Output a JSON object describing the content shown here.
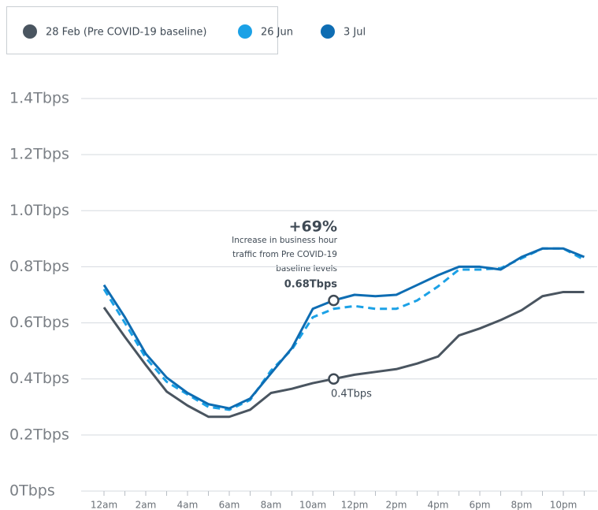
{
  "chart_data": {
    "type": "line",
    "categories": [
      "12am",
      null,
      "2am",
      null,
      "4am",
      null,
      "6am",
      null,
      "8am",
      null,
      "10am",
      null,
      "12pm",
      null,
      "2pm",
      null,
      "4pm",
      null,
      "6pm",
      null,
      "8pm",
      null,
      "10pm",
      null
    ],
    "series": [
      {
        "name": "28 Feb (Pre COVID-19 baseline)",
        "color": "#4a5560",
        "style": "solid",
        "values": [
          0.655,
          0.55,
          0.45,
          0.355,
          0.305,
          0.265,
          0.265,
          0.29,
          0.35,
          0.365,
          0.385,
          0.4,
          0.415,
          0.425,
          0.435,
          0.455,
          0.48,
          0.555,
          0.58,
          0.61,
          0.645,
          0.695,
          0.71,
          0.71
        ]
      },
      {
        "name": "26 Jun",
        "color": "#1ba1e6",
        "style": "dashed",
        "values": [
          0.72,
          0.6,
          0.475,
          0.39,
          0.345,
          0.3,
          0.29,
          0.325,
          0.43,
          0.505,
          0.62,
          0.65,
          0.66,
          0.65,
          0.65,
          0.68,
          0.73,
          0.79,
          0.79,
          0.795,
          0.83,
          0.865,
          0.865,
          0.825
        ]
      },
      {
        "name": "3 Jul",
        "color": "#0e6db3",
        "style": "solid",
        "values": [
          0.735,
          0.62,
          0.49,
          0.405,
          0.35,
          0.31,
          0.295,
          0.33,
          0.42,
          0.51,
          0.65,
          0.68,
          0.7,
          0.695,
          0.7,
          0.735,
          0.77,
          0.8,
          0.8,
          0.79,
          0.835,
          0.865,
          0.865,
          0.835
        ]
      }
    ],
    "ylim": [
      0,
      1.4
    ],
    "yticks": [
      {
        "value": 0,
        "label": "0Tbps"
      },
      {
        "value": 0.2,
        "label": "0.2Tbps"
      },
      {
        "value": 0.4,
        "label": "0.4Tbps"
      },
      {
        "value": 0.6,
        "label": "0.6Tbps"
      },
      {
        "value": 0.8,
        "label": "0.8Tbps"
      },
      {
        "value": 1.0,
        "label": "1.0Tbps"
      },
      {
        "value": 1.2,
        "label": "1.2Tbps"
      },
      {
        "value": 1.4,
        "label": "1.4Tbps"
      }
    ],
    "grid": true,
    "legend": "top-left",
    "highlight_index": 11,
    "annotations": [
      "+69%",
      "Increase in business hour",
      "traffic from Pre COVID-19",
      "baseline levels",
      "0.68Tbps",
      "0.4Tbps"
    ]
  }
}
